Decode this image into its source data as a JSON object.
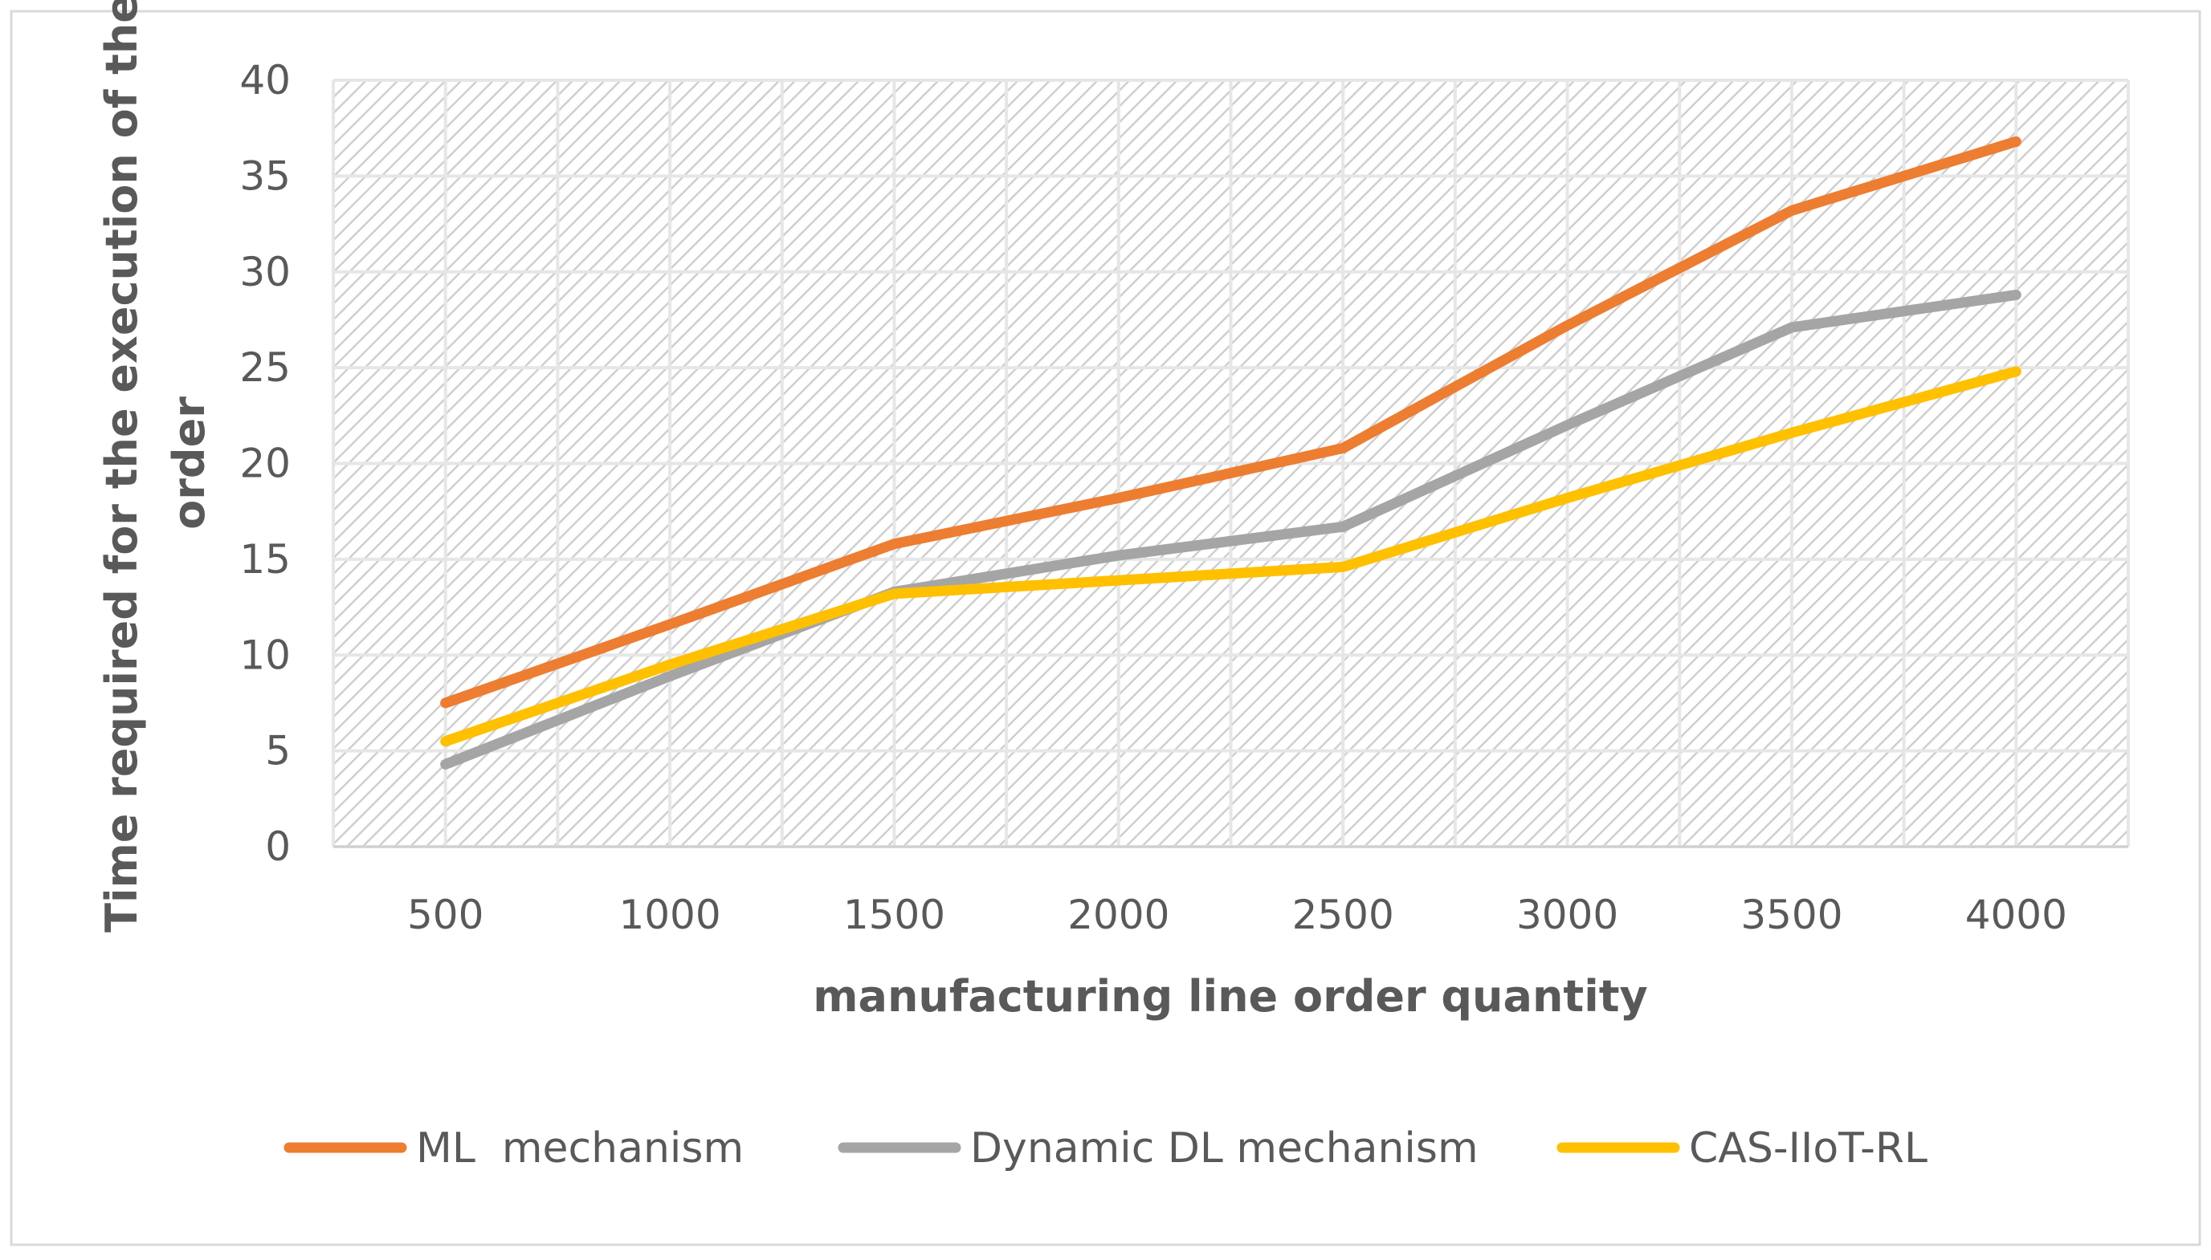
{
  "chart_data": {
    "type": "line",
    "title": "",
    "xlabel": "manufacturing line order quantity",
    "ylabel": "Time required for the execution of the order",
    "ylabel_lines": [
      "Time required for the execution of the",
      "order"
    ],
    "categories": [
      "500",
      "1000",
      "1500",
      "2000",
      "2500",
      "3000",
      "3500",
      "4000"
    ],
    "ylim": [
      0,
      40
    ],
    "yticks": [
      0,
      5,
      10,
      15,
      20,
      25,
      30,
      35,
      40
    ],
    "grid": true,
    "legend_position": "bottom",
    "series": [
      {
        "name": "ML  mechanism",
        "color": "#ED7D31",
        "values": [
          7.5,
          11.6,
          15.8,
          18.2,
          20.8,
          27.2,
          33.2,
          36.8
        ]
      },
      {
        "name": "Dynamic DL mechanism",
        "color": "#A5A5A5",
        "values": [
          4.3,
          8.9,
          13.3,
          15.2,
          16.7,
          22.0,
          27.1,
          28.8
        ]
      },
      {
        "name": "CAS-IIoT-RL",
        "color": "#FFC000",
        "values": [
          5.5,
          9.5,
          13.2,
          13.9,
          14.6,
          18.2,
          21.6,
          24.8
        ]
      }
    ]
  }
}
